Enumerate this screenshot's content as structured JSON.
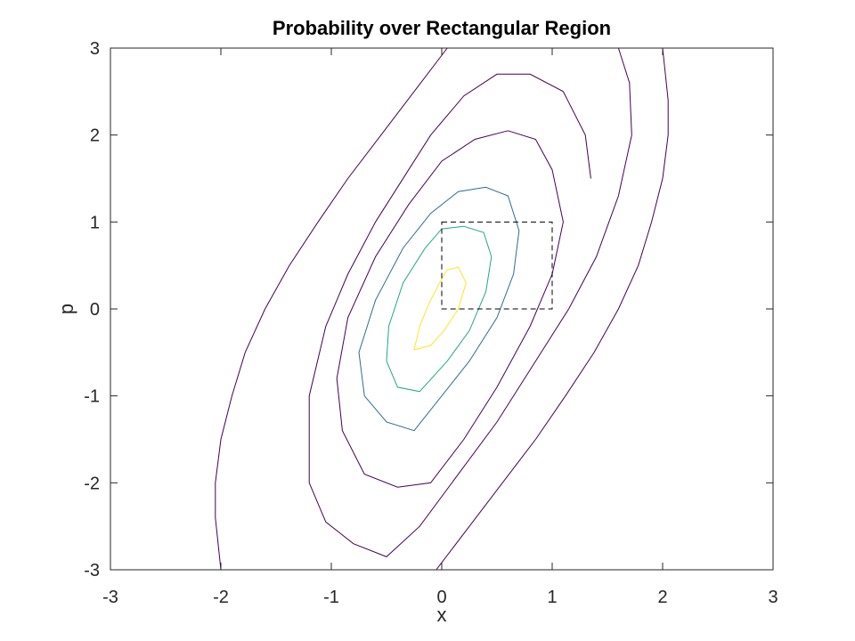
{
  "chart_data": {
    "type": "contour",
    "title": "Probability over Rectangular Region",
    "xlabel": "x",
    "ylabel": "p",
    "xlim": [
      -3,
      3
    ],
    "ylim": [
      -3,
      3
    ],
    "xticks": [
      -3,
      -2,
      -1,
      0,
      1,
      2,
      3
    ],
    "yticks": [
      -3,
      -2,
      -1,
      0,
      1,
      2,
      3
    ],
    "grid": false,
    "contours": [
      {
        "level": 1,
        "color": "#440154",
        "points": [
          [
            2.0,
            3.0
          ],
          [
            2.05,
            2.4
          ],
          [
            2.05,
            2.0
          ],
          [
            2.0,
            1.5
          ],
          [
            1.9,
            1.0
          ],
          [
            1.78,
            0.5
          ],
          [
            1.6,
            0.0
          ],
          [
            1.38,
            -0.5
          ],
          [
            1.12,
            -1.0
          ],
          [
            0.85,
            -1.5
          ],
          [
            0.55,
            -2.0
          ],
          [
            0.25,
            -2.5
          ],
          [
            -0.05,
            -3.0
          ]
        ]
      },
      {
        "level": 1,
        "color": "#440154",
        "points": [
          [
            -2.0,
            -3.0
          ],
          [
            -2.05,
            -2.4
          ],
          [
            -2.05,
            -2.0
          ],
          [
            -2.0,
            -1.5
          ],
          [
            -1.9,
            -1.0
          ],
          [
            -1.78,
            -0.5
          ],
          [
            -1.6,
            0.0
          ],
          [
            -1.38,
            0.5
          ],
          [
            -1.12,
            1.0
          ],
          [
            -0.85,
            1.5
          ],
          [
            -0.55,
            2.0
          ],
          [
            -0.25,
            2.5
          ],
          [
            0.05,
            3.0
          ]
        ]
      },
      {
        "level": 2,
        "color": "#440154",
        "points": [
          [
            1.6,
            3.0
          ],
          [
            1.7,
            2.6
          ],
          [
            1.72,
            2.0
          ],
          [
            1.6,
            1.3
          ],
          [
            1.4,
            0.6
          ],
          [
            1.15,
            0.0
          ],
          [
            0.85,
            -0.6
          ],
          [
            0.5,
            -1.3
          ],
          [
            0.15,
            -1.9
          ],
          [
            -0.2,
            -2.5
          ],
          [
            -0.5,
            -2.85
          ],
          [
            -0.8,
            -2.7
          ],
          [
            -1.05,
            -2.45
          ],
          [
            -1.2,
            -2.0
          ],
          [
            -1.2,
            -1.0
          ],
          [
            -1.05,
            -0.2
          ],
          [
            -0.85,
            0.4
          ],
          [
            -0.6,
            1.0
          ],
          [
            -0.3,
            1.6
          ],
          [
            -0.1,
            2.0
          ],
          [
            0.2,
            2.45
          ],
          [
            0.5,
            2.7
          ],
          [
            0.8,
            2.7
          ],
          [
            1.1,
            2.5
          ],
          [
            1.3,
            2.0
          ],
          [
            1.35,
            1.5
          ]
        ]
      },
      {
        "level": 3,
        "color": "#440154",
        "points": [
          [
            0.6,
            2.05
          ],
          [
            0.85,
            1.95
          ],
          [
            1.0,
            1.6
          ],
          [
            1.1,
            1.0
          ],
          [
            1.0,
            0.4
          ],
          [
            0.8,
            -0.2
          ],
          [
            0.5,
            -0.9
          ],
          [
            0.2,
            -1.5
          ],
          [
            -0.1,
            -2.0
          ],
          [
            -0.4,
            -2.05
          ],
          [
            -0.7,
            -1.9
          ],
          [
            -0.9,
            -1.4
          ],
          [
            -0.95,
            -0.8
          ],
          [
            -0.85,
            -0.1
          ],
          [
            -0.6,
            0.6
          ],
          [
            -0.3,
            1.2
          ],
          [
            0.0,
            1.7
          ],
          [
            0.3,
            1.95
          ],
          [
            0.6,
            2.05
          ]
        ]
      },
      {
        "level": 4,
        "color": "#2f6c8e",
        "points": [
          [
            0.4,
            1.4
          ],
          [
            0.6,
            1.3
          ],
          [
            0.7,
            0.9
          ],
          [
            0.65,
            0.4
          ],
          [
            0.5,
            -0.1
          ],
          [
            0.25,
            -0.6
          ],
          [
            0.0,
            -1.0
          ],
          [
            -0.25,
            -1.4
          ],
          [
            -0.5,
            -1.3
          ],
          [
            -0.7,
            -1.0
          ],
          [
            -0.75,
            -0.5
          ],
          [
            -0.6,
            0.1
          ],
          [
            -0.35,
            0.7
          ],
          [
            -0.1,
            1.1
          ],
          [
            0.15,
            1.35
          ],
          [
            0.4,
            1.4
          ]
        ]
      },
      {
        "level": 5,
        "color": "#23a884",
        "points": [
          [
            0.2,
            0.95
          ],
          [
            0.38,
            0.88
          ],
          [
            0.45,
            0.6
          ],
          [
            0.4,
            0.2
          ],
          [
            0.25,
            -0.25
          ],
          [
            0.05,
            -0.6
          ],
          [
            -0.2,
            -0.95
          ],
          [
            -0.4,
            -0.9
          ],
          [
            -0.5,
            -0.6
          ],
          [
            -0.48,
            -0.2
          ],
          [
            -0.35,
            0.3
          ],
          [
            -0.15,
            0.7
          ],
          [
            0.0,
            0.92
          ],
          [
            0.2,
            0.95
          ]
        ]
      },
      {
        "level": 6,
        "color": "#fde725",
        "points": [
          [
            0.15,
            0.48
          ],
          [
            0.22,
            0.3
          ],
          [
            0.15,
            0.0
          ],
          [
            0.02,
            -0.25
          ],
          [
            -0.1,
            -0.42
          ],
          [
            -0.25,
            -0.47
          ],
          [
            -0.2,
            -0.2
          ],
          [
            -0.12,
            0.05
          ],
          [
            -0.02,
            0.3
          ],
          [
            0.05,
            0.45
          ],
          [
            0.15,
            0.48
          ]
        ]
      }
    ],
    "region": {
      "x": [
        0,
        1
      ],
      "p": [
        0,
        1
      ],
      "style": "dashed",
      "color": "#000000"
    }
  }
}
